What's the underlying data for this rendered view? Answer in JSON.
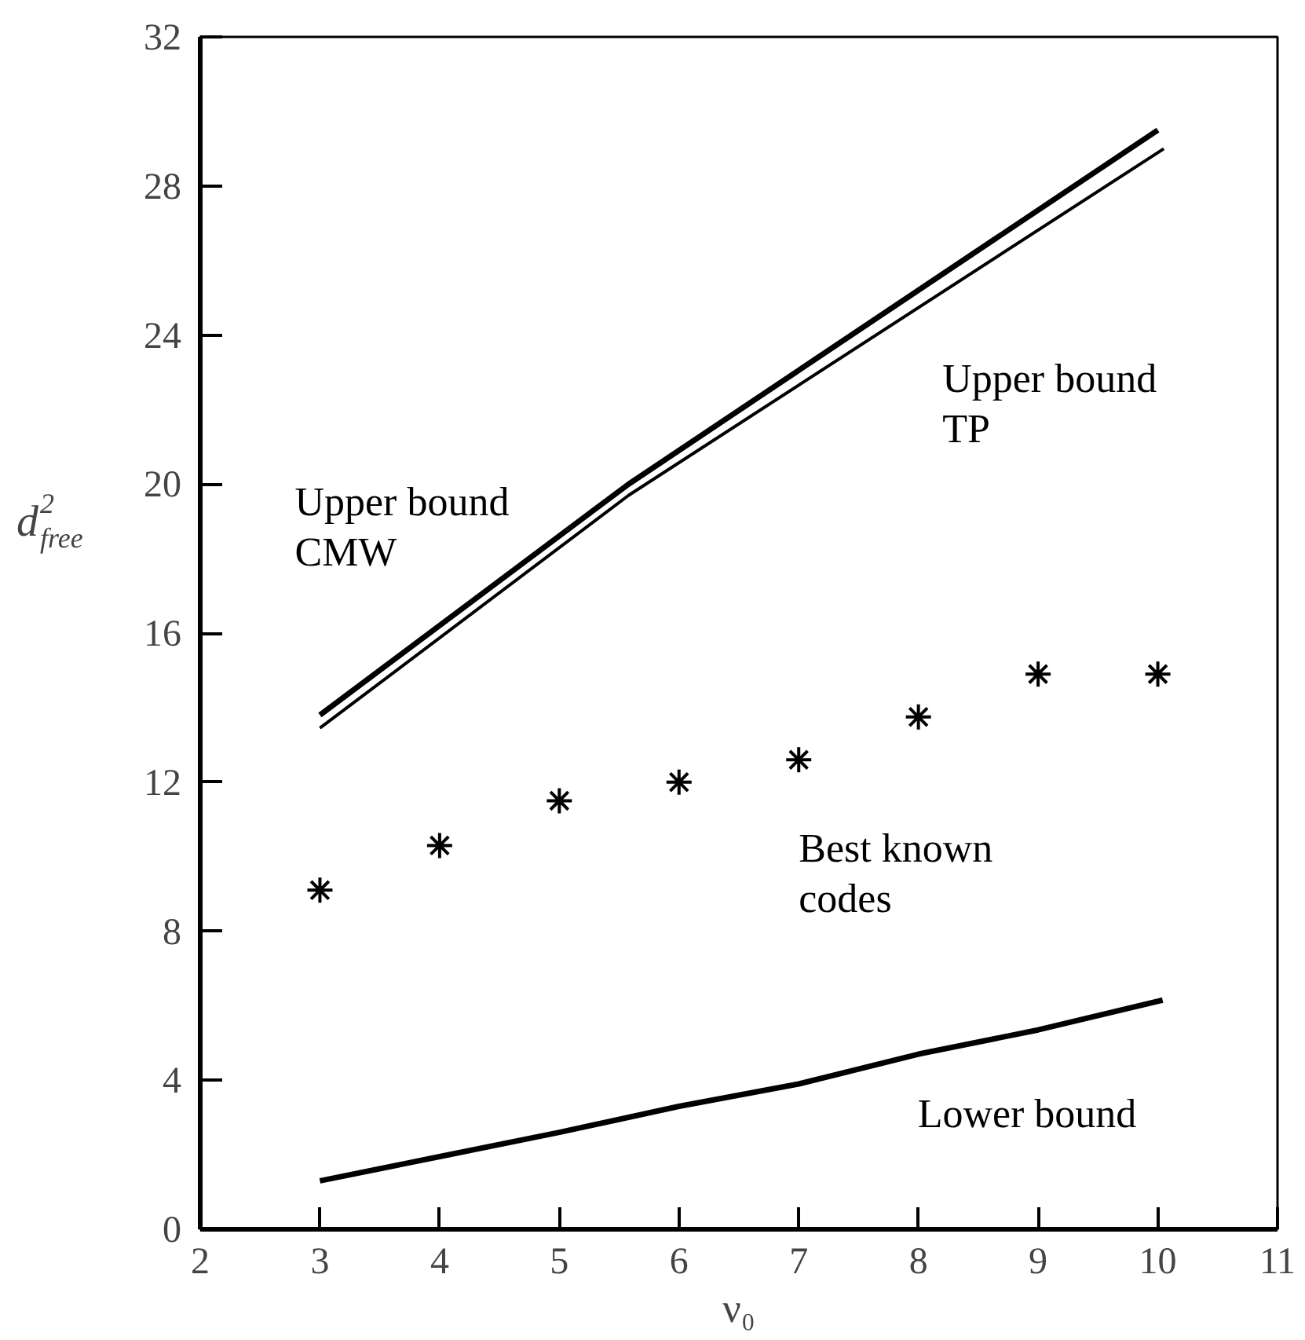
{
  "chart_data": {
    "type": "line",
    "xlabel": "ν₀",
    "ylabel": "d$^{2}$$_{free}$",
    "xlim": [
      2,
      11
    ],
    "ylim": [
      0,
      32
    ],
    "xticks": [
      2,
      3,
      4,
      5,
      6,
      7,
      8,
      9,
      10,
      11
    ],
    "yticks": [
      0,
      4,
      8,
      12,
      16,
      20,
      24,
      28,
      32
    ],
    "series": [
      {
        "name": "Upper bound\nCMW",
        "color": "#000000",
        "x": [
          3,
          5.58,
          10
        ],
        "values": [
          13.8,
          20.0,
          29.5
        ]
      },
      {
        "name": "Upper bound\nTP",
        "color": "#000000",
        "x": [
          3,
          5.58,
          10.05
        ],
        "values": [
          13.45,
          19.7,
          29.0
        ]
      },
      {
        "name": "Best known\ncodes",
        "type": "scatter",
        "marker": "cross",
        "color": "#000000",
        "x": [
          3,
          4,
          5,
          6,
          7,
          8,
          9,
          10
        ],
        "values": [
          9.1,
          10.3,
          11.5,
          12.0,
          12.6,
          13.75,
          14.9,
          14.9
        ]
      },
      {
        "name": "Lower bound",
        "color": "#000000",
        "x": [
          3,
          4,
          5,
          6,
          7,
          8,
          9,
          10.04
        ],
        "values": [
          1.3,
          1.95,
          2.6,
          3.3,
          3.9,
          4.7,
          5.35,
          6.15
        ]
      }
    ]
  }
}
